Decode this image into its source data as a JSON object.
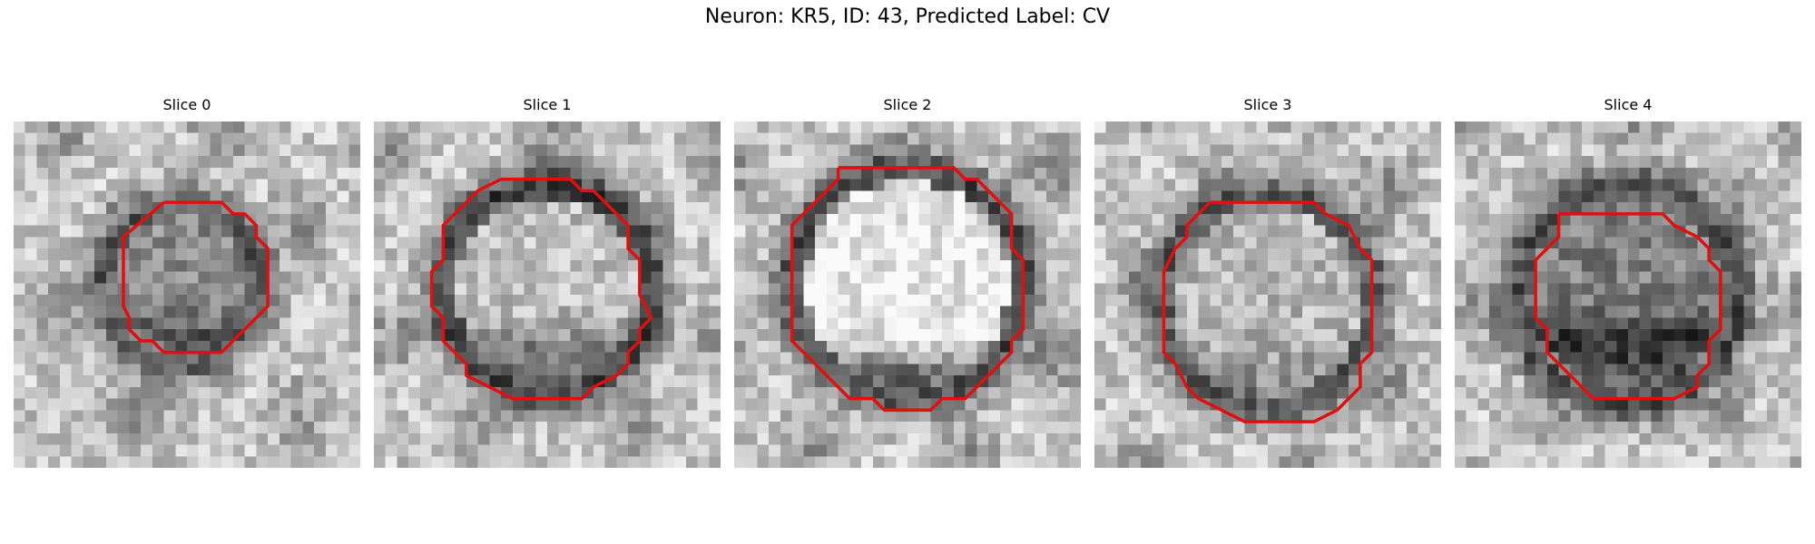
{
  "figure": {
    "title": "Neuron: KR5, ID: 43, Predicted Label: CV"
  },
  "panels": [
    {
      "title": "Slice 0",
      "outline_color": "#e01010"
    },
    {
      "title": "Slice 1",
      "outline_color": "#e01010"
    },
    {
      "title": "Slice 2",
      "outline_color": "#e01010"
    },
    {
      "title": "Slice 3",
      "outline_color": "#e01010"
    },
    {
      "title": "Slice 4",
      "outline_color": "#e01010"
    }
  ]
}
